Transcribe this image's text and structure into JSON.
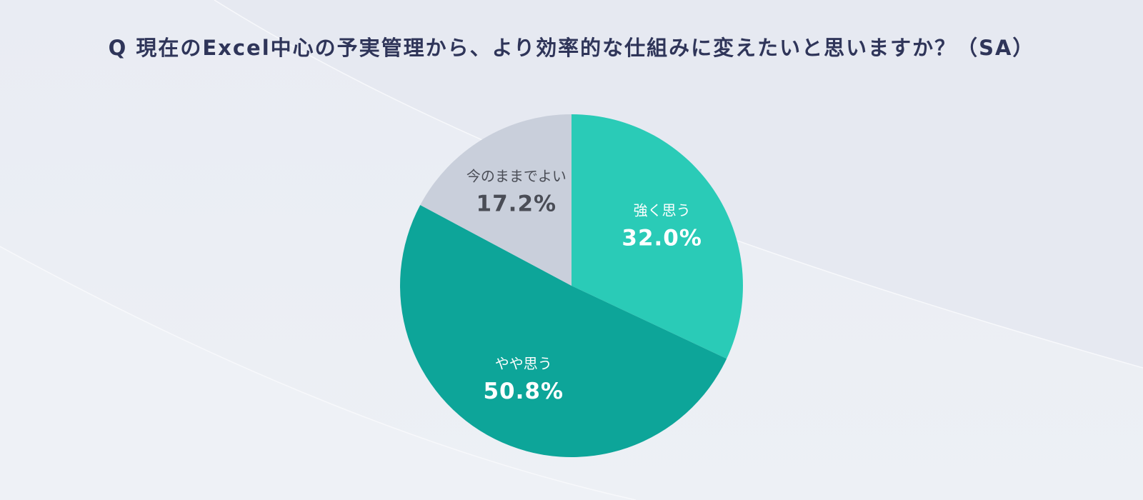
{
  "page": {
    "title": "Q 現在のExcel中心の予実管理から、より効率的な仕組みに変えたいと思いますか？（SA）"
  },
  "chart_data": {
    "type": "pie",
    "title": "Q 現在のExcel中心の予実管理から、より効率的な仕組みに変えたいと思いますか？（SA）",
    "slices": [
      {
        "label": "強く思う",
        "value": 32.0,
        "display": "32.0%",
        "color": "#2acbb7",
        "text_color": "#ffffff"
      },
      {
        "label": "やや思う",
        "value": 50.8,
        "display": "50.8%",
        "color": "#0da599",
        "text_color": "#ffffff"
      },
      {
        "label": "今のままでよい",
        "value": 17.2,
        "display": "17.2%",
        "color": "#c9cfdb",
        "text_color": "#4a4d56"
      }
    ],
    "legend": "none",
    "start_angle": "12 o'clock",
    "direction": "clockwise"
  }
}
